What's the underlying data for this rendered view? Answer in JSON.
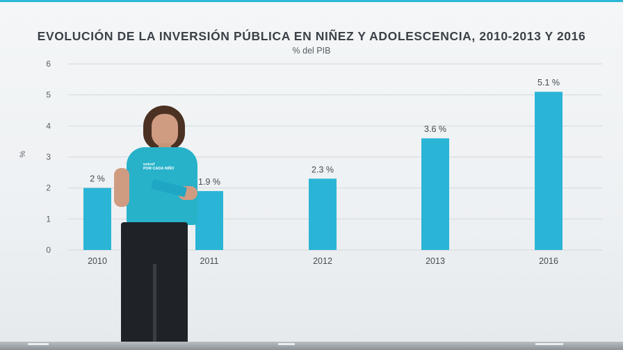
{
  "chart_data": {
    "type": "bar",
    "title": "EVOLUCIÓN DE LA INVERSIÓN PÚBLICA EN NIÑEZ Y ADOLESCENCIA, 2010-2013 Y 2016",
    "subtitle": "% del PIB",
    "ylabel": "%",
    "xlabel": "",
    "ylim": [
      0,
      6
    ],
    "yticks": [
      "0",
      "1",
      "2",
      "3",
      "4",
      "5",
      "6"
    ],
    "grid": true,
    "categories": [
      "2010",
      "2011",
      "2012",
      "2013",
      "2016"
    ],
    "values": [
      2.0,
      1.9,
      2.3,
      3.6,
      5.1
    ],
    "data_labels": [
      "2 %",
      "1.9 %",
      "2.3 %",
      "3.6 %",
      "5.1 %"
    ],
    "bar_color": "#2ab5d6"
  },
  "presenter": {
    "shirt_text_1": "unicef ",
    "shirt_text_2": "POR CADA NIÑO"
  }
}
